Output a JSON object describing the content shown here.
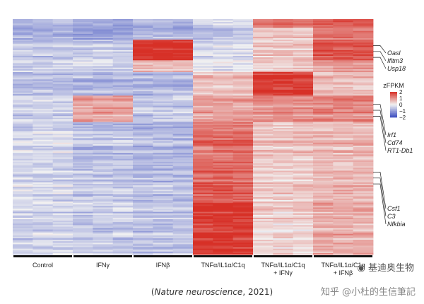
{
  "chart_data": {
    "type": "heatmap",
    "conditions": [
      "Control",
      "IFNγ",
      "IFNβ",
      "TNFα/IL1α/C1q",
      "TNFα/IL1α/C1q + IFNγ",
      "TNFα/IL1α/C1q + IFNβ"
    ],
    "condition_lines": [
      [
        "Control"
      ],
      [
        "IFNγ"
      ],
      [
        "IFNβ"
      ],
      [
        "TNFα/IL1α/C1q"
      ],
      [
        "TNFα/IL1α/C1q",
        "+ IFNγ"
      ],
      [
        "TNFα/IL1α/C1q",
        "+ IFNβ"
      ]
    ],
    "replicates_per_condition": 3,
    "row_count": 160,
    "gene_labels": [
      "Oasl",
      "Ifitm3",
      "Usp18",
      "Irf1",
      "Cd74",
      "RT1-Db1",
      "Csf1",
      "C3",
      "Nfkbia"
    ],
    "gene_label_rows": [
      18,
      22,
      26,
      58,
      62,
      66,
      104,
      108,
      112
    ],
    "row_clusters": [
      {
        "start": 0,
        "end": 6,
        "means": [
          -0.8,
          -1.0,
          -0.9,
          -0.4,
          1.2,
          1.4
        ]
      },
      {
        "start": 6,
        "end": 14,
        "means": [
          -0.7,
          -0.9,
          -0.6,
          -0.5,
          0.5,
          1.3
        ]
      },
      {
        "start": 14,
        "end": 28,
        "means": [
          -0.6,
          -0.5,
          2.0,
          -0.3,
          0.4,
          1.6
        ]
      },
      {
        "start": 28,
        "end": 36,
        "means": [
          -0.5,
          -0.4,
          0.5,
          -0.2,
          0.3,
          0.8
        ]
      },
      {
        "start": 36,
        "end": 52,
        "means": [
          -0.5,
          -0.6,
          -0.6,
          0.6,
          2.0,
          0.7
        ]
      },
      {
        "start": 52,
        "end": 70,
        "means": [
          -0.4,
          0.8,
          -0.5,
          0.8,
          1.0,
          1.1
        ]
      },
      {
        "start": 70,
        "end": 95,
        "means": [
          -0.3,
          -0.6,
          -0.7,
          1.3,
          0.5,
          0.6
        ]
      },
      {
        "start": 95,
        "end": 125,
        "means": [
          -0.3,
          -0.5,
          -0.6,
          1.5,
          0.4,
          0.6
        ]
      },
      {
        "start": 125,
        "end": 160,
        "means": [
          -0.4,
          -0.5,
          -0.6,
          1.9,
          0.3,
          0.7
        ]
      }
    ],
    "colorbar": {
      "title": "zFPKM",
      "ticks": [
        2,
        1,
        0,
        -1,
        -2
      ],
      "vmin": -2,
      "vmax": 2,
      "colors": {
        "low": "#3b4cc0",
        "mid": "#f2f2f2",
        "high": "#d73027"
      }
    }
  },
  "caption": {
    "open": "(",
    "journal": "Nature neuroscience",
    "rest": ", 2021)"
  },
  "watermark_brand": "基迪奥生物",
  "watermark_source": "知乎 @小杜的生信筆記"
}
